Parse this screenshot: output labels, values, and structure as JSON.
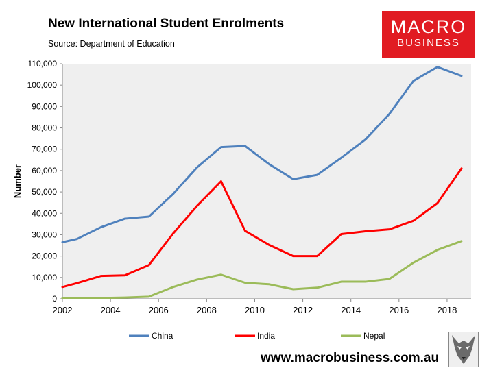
{
  "header": {
    "title": "New International Student Enrolments",
    "source": "Source: Department of Education"
  },
  "logo": {
    "line1": "MACRO",
    "line2": "BUSINESS",
    "color": "#e11b22"
  },
  "footer": {
    "url": "www.macrobusiness.com.au"
  },
  "chart_data": {
    "type": "line",
    "title": "New International Student Enrolments",
    "ylabel": "Number",
    "xlabel": "",
    "xlim": [
      2002,
      2019
    ],
    "ylim": [
      0,
      110000
    ],
    "x_ticks": [
      2002,
      2004,
      2006,
      2008,
      2010,
      2012,
      2014,
      2016,
      2018
    ],
    "x_tick_labels": [
      "2002",
      "2004",
      "2006",
      "2008",
      "2010",
      "2012",
      "2014",
      "2016",
      "2018"
    ],
    "y_ticks": [
      0,
      10000,
      20000,
      30000,
      40000,
      50000,
      60000,
      70000,
      80000,
      90000,
      100000,
      110000
    ],
    "y_tick_labels": [
      "0",
      "10,000",
      "20,000",
      "30,000",
      "40,000",
      "50,000",
      "60,000",
      "70,000",
      "80,000",
      "90,000",
      "100,000",
      "110,000"
    ],
    "grid": false,
    "plot_background": "#efefef",
    "legend_position": "bottom",
    "x": [
      2002.0,
      2002.6,
      2003.6,
      2004.6,
      2005.6,
      2006.6,
      2007.6,
      2008.6,
      2009.6,
      2010.6,
      2011.6,
      2012.6,
      2013.6,
      2014.6,
      2015.6,
      2016.6,
      2017.6,
      2018.6
    ],
    "series": [
      {
        "name": "China",
        "color": "#4f81bd",
        "values": [
          26500,
          28000,
          33500,
          37500,
          38500,
          49000,
          61500,
          71000,
          71500,
          63000,
          56000,
          58000,
          66000,
          74500,
          86500,
          102000,
          108500,
          104300
        ]
      },
      {
        "name": "India",
        "color": "#ff0000",
        "values": [
          5500,
          7300,
          10700,
          11000,
          15800,
          30500,
          43500,
          55000,
          31800,
          25200,
          20000,
          20000,
          30300,
          31600,
          32500,
          36500,
          44800,
          61000
        ]
      },
      {
        "name": "Nepal",
        "color": "#9bbb59",
        "values": [
          300,
          300,
          400,
          600,
          1000,
          5500,
          9000,
          11300,
          7500,
          6800,
          4500,
          5200,
          8000,
          8000,
          9300,
          16900,
          22900,
          27000
        ]
      }
    ]
  }
}
